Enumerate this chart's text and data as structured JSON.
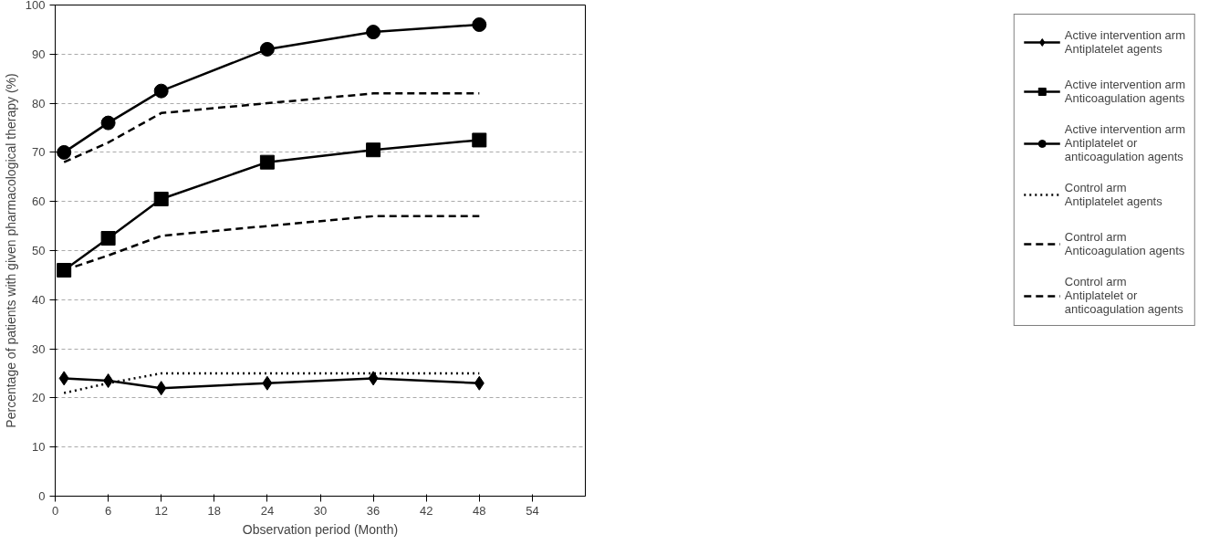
{
  "chart_data": {
    "type": "line",
    "xlabel": "Observation period (Month)",
    "ylabel": "Percentage of patients with given pharmacological therapy (%)",
    "x": [
      1,
      6,
      12,
      24,
      36,
      48
    ],
    "xlim": [
      0,
      60
    ],
    "xticks": [
      0,
      6,
      12,
      18,
      24,
      30,
      36,
      42,
      48,
      54
    ],
    "ylim": [
      0,
      100
    ],
    "yticks": [
      0,
      10,
      20,
      30,
      40,
      50,
      60,
      70,
      80,
      90,
      100
    ],
    "grid": "y",
    "legend": "right",
    "series": [
      {
        "name": "Active intervention arm\nAntiplatelet agents",
        "color": "#000000",
        "marker": "diamond",
        "line_style": "solid",
        "values": [
          24,
          23.5,
          22,
          23,
          24,
          23
        ]
      },
      {
        "name": "Active intervention arm\nAnticoagulation agents",
        "color": "#000000",
        "marker": "square",
        "line_style": "solid",
        "values": [
          46,
          52.5,
          60.5,
          68,
          70.5,
          72.5
        ]
      },
      {
        "name": "Active intervention arm\nAntiplatelet or\nanticoagulation agents",
        "color": "#000000",
        "marker": "circle",
        "line_style": "solid",
        "values": [
          70,
          76,
          82.5,
          91,
          94.5,
          96
        ]
      },
      {
        "name": "Control arm\nAntiplatelet agents",
        "color": "#000000",
        "marker": "none",
        "line_style": "dotted",
        "values": [
          21,
          23,
          25,
          25,
          25,
          25
        ]
      },
      {
        "name": "Control arm\nAnticoagulation agents",
        "color": "#000000",
        "marker": "none",
        "line_style": "dashed",
        "values": [
          46,
          49,
          53,
          55,
          57,
          57
        ]
      },
      {
        "name": "Control arm\nAntiplatelet or\nanticoagulation agents",
        "color": "#000000",
        "marker": "none",
        "line_style": "dashed",
        "values": [
          68,
          72,
          78,
          80,
          82,
          82
        ]
      }
    ]
  }
}
